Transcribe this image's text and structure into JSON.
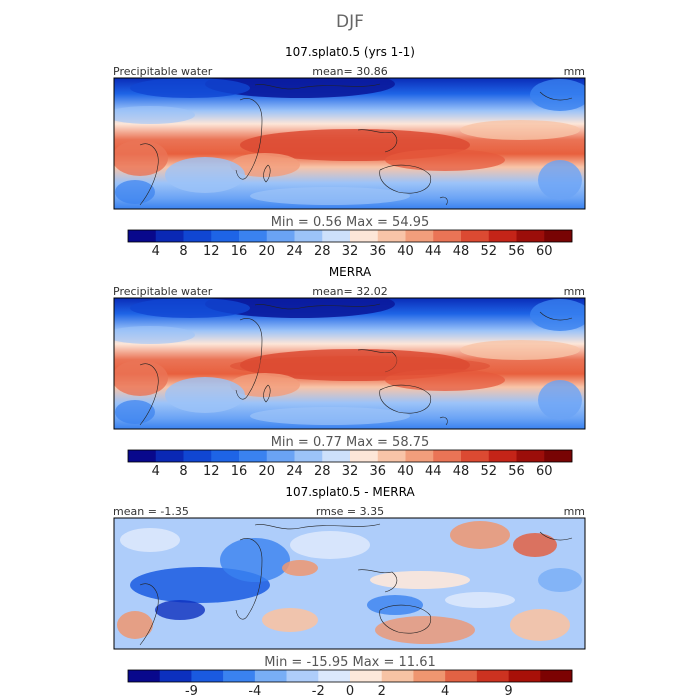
{
  "chart_data": {
    "type": "heatmap",
    "title": "DJF",
    "colors": {
      "abs_scale": [
        "#08088c",
        "#0a28b4",
        "#1046d2",
        "#1e64e6",
        "#3a82f0",
        "#6aa3f5",
        "#9cc3f8",
        "#cde0fb",
        "#fde6d8",
        "#f8c4a8",
        "#f29e7c",
        "#ea7456",
        "#dc4a32",
        "#c42418",
        "#9c0e0a",
        "#780404"
      ],
      "diff_scale": [
        "#08088c",
        "#0c30be",
        "#1a5ae0",
        "#3a82f0",
        "#78aef6",
        "#aecdfa",
        "#dbe8fc",
        "#fde8da",
        "#f7c3a4",
        "#ef9670",
        "#e26244",
        "#cc3220",
        "#a81008",
        "#7c0202"
      ]
    },
    "panels": [
      {
        "title": "107.splat0.5 (yrs 1-1)",
        "left_label": "Precipitable water",
        "center_label": "mean=  30.86",
        "units": "mm",
        "minmax": "Min =    0.56  Max =   54.95",
        "colorbar_ticks": [
          "4",
          "8",
          "12",
          "16",
          "20",
          "24",
          "28",
          "32",
          "36",
          "40",
          "44",
          "48",
          "52",
          "56",
          "60"
        ]
      },
      {
        "title": "MERRA",
        "left_label": "Precipitable water",
        "center_label": "mean=  32.02",
        "units": "mm",
        "minmax": "Min =    0.77  Max =   58.75",
        "colorbar_ticks": [
          "4",
          "8",
          "12",
          "16",
          "20",
          "24",
          "28",
          "32",
          "36",
          "40",
          "44",
          "48",
          "52",
          "56",
          "60"
        ]
      },
      {
        "title": "107.splat0.5 - MERRA",
        "left_label": "mean =  -1.35",
        "center_label": "rmse =    3.35",
        "units": "mm",
        "minmax": "Min = -15.95  Max =   11.61",
        "colorbar_ticks": [
          "-9",
          "-4",
          "-2",
          "0",
          "2",
          "4",
          "9"
        ]
      }
    ]
  }
}
